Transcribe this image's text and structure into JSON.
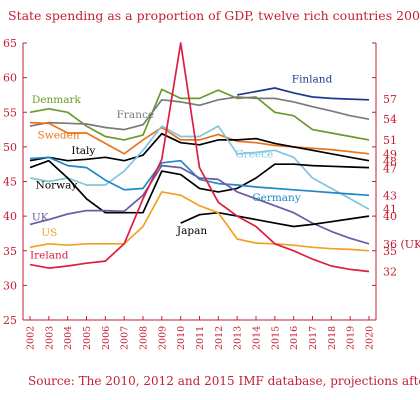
{
  "chart_data": {
    "type": "line",
    "title": "State spending as a proportion of GDP, twelve rich countries 2002-20 (%)",
    "source": "Source: The 2010, 2012 and 2015 IMF database, projections after 2014",
    "x": [
      2002,
      2003,
      2004,
      2005,
      2006,
      2007,
      2008,
      2009,
      2010,
      2011,
      2012,
      2013,
      2014,
      2015,
      2016,
      2017,
      2018,
      2019,
      2020
    ],
    "ylim": [
      25,
      65
    ],
    "yticks": [
      25,
      30,
      35,
      40,
      45,
      50,
      55,
      60,
      65
    ],
    "grid": false,
    "right_labels": [
      "57",
      "54",
      "51",
      "49",
      "48",
      "47",
      "43",
      "41",
      "40",
      "36 (UK)",
      "35",
      "32"
    ],
    "series": [
      {
        "name": "Finland",
        "color": "#1b3a8c",
        "values": [
          null,
          null,
          null,
          null,
          null,
          null,
          null,
          null,
          null,
          null,
          null,
          57.5,
          58.0,
          58.5,
          57.8,
          57.2,
          57.0,
          56.9,
          56.8
        ]
      },
      {
        "name": "Denmark",
        "color": "#6a9a2c",
        "values": [
          55.0,
          55.5,
          55.0,
          53.0,
          51.5,
          51.0,
          51.7,
          58.3,
          57.0,
          57.0,
          58.2,
          57.0,
          57.2,
          55.0,
          54.5,
          52.5,
          52.0,
          51.5,
          51.0
        ]
      },
      {
        "name": "France",
        "color": "#7a7a7a",
        "values": [
          53.0,
          53.5,
          53.4,
          53.3,
          52.8,
          52.5,
          53.2,
          56.8,
          56.5,
          56.0,
          56.8,
          57.2,
          57.0,
          57.0,
          56.5,
          55.8,
          55.2,
          54.5,
          54.0
        ]
      },
      {
        "name": "Sweden",
        "color": "#e8741a",
        "values": [
          53.5,
          53.4,
          52.0,
          52.0,
          50.5,
          49.0,
          51.0,
          52.8,
          51.0,
          51.0,
          51.8,
          50.8,
          50.6,
          50.2,
          50.0,
          49.8,
          49.6,
          49.3,
          49.0
        ]
      },
      {
        "name": "Italy",
        "color": "#000000",
        "values": [
          48.0,
          48.5,
          48.0,
          48.2,
          48.5,
          48.0,
          48.8,
          51.9,
          50.6,
          50.3,
          51.0,
          51.0,
          51.2,
          50.5,
          50.0,
          49.5,
          49.0,
          48.5,
          48.0
        ]
      },
      {
        "name": "Greece",
        "color": "#7fc6de",
        "values": [
          45.5,
          45.0,
          45.5,
          44.5,
          44.5,
          46.5,
          49.5,
          53.0,
          51.5,
          51.5,
          53.0,
          49.0,
          49.2,
          49.5,
          48.5,
          45.5,
          44.0,
          42.5,
          41.0
        ]
      },
      {
        "name": "Norway",
        "color": "#000000",
        "values": [
          47.0,
          48.0,
          45.5,
          42.5,
          40.5,
          40.5,
          40.5,
          46.5,
          46.0,
          44.0,
          43.5,
          44.0,
          45.5,
          47.5,
          47.5,
          47.3,
          47.2,
          47.1,
          47.0
        ]
      },
      {
        "name": "Germany",
        "color": "#1e88c8",
        "values": [
          48.3,
          48.5,
          47.3,
          47.0,
          45.2,
          43.8,
          44.0,
          47.7,
          48.0,
          45.3,
          44.7,
          44.5,
          44.2,
          44.0,
          43.8,
          43.6,
          43.4,
          43.2,
          43.0
        ]
      },
      {
        "name": "UK",
        "color": "#6b5aa5",
        "values": [
          38.8,
          39.5,
          40.3,
          40.8,
          40.8,
          40.7,
          43.0,
          47.3,
          47.0,
          45.5,
          45.3,
          43.5,
          42.5,
          41.5,
          40.5,
          39.0,
          37.8,
          36.8,
          36.0
        ]
      },
      {
        "name": "Japan",
        "color": "#000000",
        "values": [
          null,
          null,
          null,
          null,
          null,
          null,
          null,
          null,
          39.0,
          40.2,
          40.5,
          40.0,
          39.5,
          39.0,
          38.5,
          38.8,
          39.2,
          39.6,
          40.0
        ]
      },
      {
        "name": "US",
        "color": "#f2a020",
        "values": [
          35.5,
          36.0,
          35.8,
          36.0,
          36.0,
          36.0,
          38.5,
          43.5,
          43.0,
          41.5,
          40.5,
          36.7,
          36.1,
          36.0,
          35.8,
          35.5,
          35.3,
          35.2,
          35.0
        ]
      },
      {
        "name": "Ireland",
        "color": "#dc1e40",
        "values": [
          33.0,
          32.5,
          32.8,
          33.2,
          33.5,
          36.0,
          42.5,
          48.2,
          65.0,
          47.0,
          42.0,
          40.0,
          38.5,
          36.0,
          35.0,
          33.8,
          32.8,
          32.3,
          32.0
        ]
      }
    ]
  }
}
